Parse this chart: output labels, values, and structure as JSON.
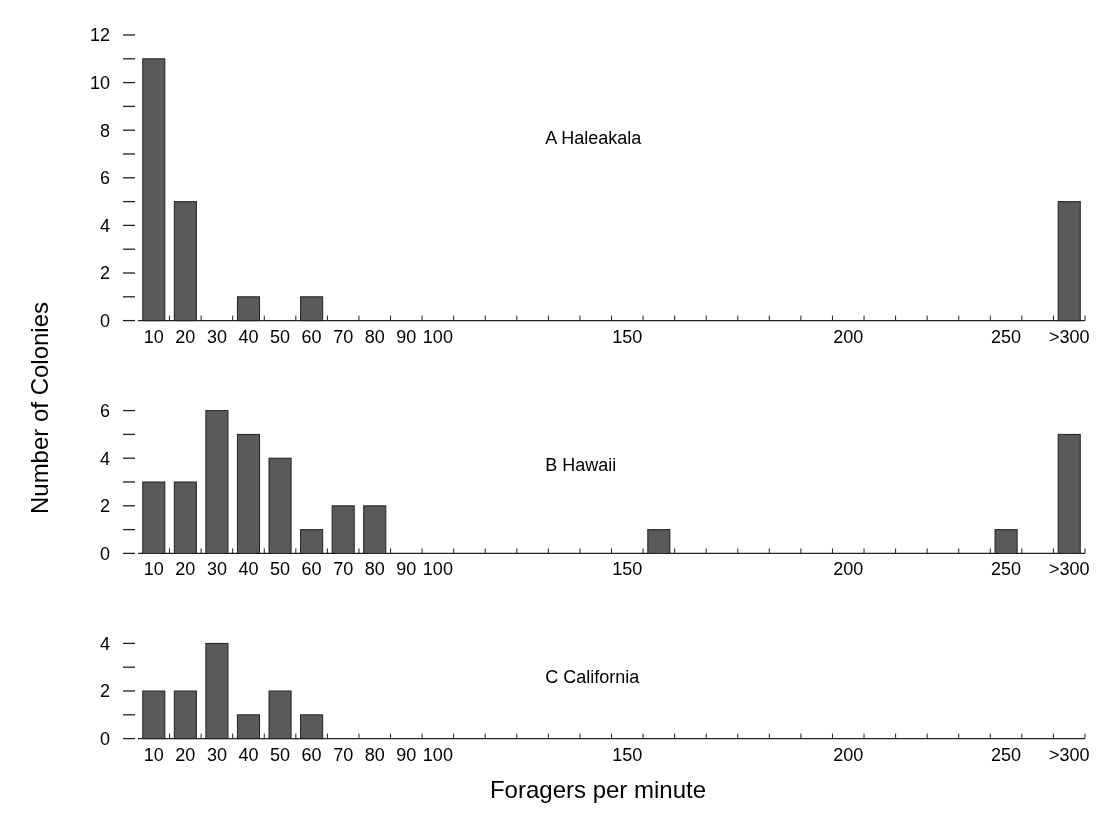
{
  "chart_data": [
    {
      "type": "bar",
      "title": "A  Haleakala",
      "categories": [
        "10",
        "20",
        "30",
        "40",
        "50",
        "60",
        "70",
        "80",
        "90",
        "100",
        null,
        null,
        null,
        null,
        null,
        "150",
        null,
        null,
        null,
        null,
        null,
        null,
        "200",
        null,
        null,
        null,
        null,
        "250",
        null,
        ">300"
      ],
      "values": [
        11,
        5,
        0,
        1,
        0,
        1,
        0,
        0,
        0,
        0,
        0,
        0,
        0,
        0,
        0,
        0,
        0,
        0,
        0,
        0,
        0,
        0,
        0,
        0,
        0,
        0,
        0,
        0,
        0,
        5
      ],
      "color": "#5a5a5a",
      "ylim": [
        0,
        12
      ],
      "yticks": [
        0,
        {
          "value": 1,
          "label": null
        },
        2,
        {
          "value": 3,
          "label": null
        },
        4,
        {
          "value": 5,
          "label": null
        },
        6,
        {
          "value": 7,
          "label": null
        },
        8,
        {
          "value": 9,
          "label": null
        },
        10,
        {
          "value": 11,
          "label": null
        },
        12
      ]
    },
    {
      "type": "bar",
      "title": "B  Hawaii",
      "ylabel": "Number of Colonies",
      "categories": [
        "10",
        "20",
        "30",
        "40",
        "50",
        "60",
        "70",
        "80",
        "90",
        "100",
        null,
        null,
        null,
        null,
        null,
        "150",
        null,
        null,
        null,
        null,
        null,
        null,
        "200",
        null,
        null,
        null,
        null,
        "250",
        null,
        ">300"
      ],
      "values": [
        3,
        3,
        6,
        5,
        4,
        1,
        2,
        2,
        0,
        0,
        0,
        0,
        0,
        0,
        0,
        0,
        1,
        0,
        0,
        0,
        0,
        0,
        0,
        0,
        0,
        0,
        0,
        1,
        0,
        5
      ],
      "color": "#5a5a5a",
      "ylim": [
        0,
        6
      ],
      "yticks": [
        0,
        {
          "value": 1,
          "label": null
        },
        2,
        {
          "value": 3,
          "label": null
        },
        4,
        {
          "value": 5,
          "label": null
        },
        6
      ]
    },
    {
      "type": "bar",
      "title": "C  California",
      "xlabel": "Foragers per minute",
      "categories": [
        "10",
        "20",
        "30",
        "40",
        "50",
        "60",
        "70",
        "80",
        "90",
        "100",
        null,
        null,
        null,
        null,
        null,
        "150",
        null,
        null,
        null,
        null,
        null,
        null,
        "200",
        null,
        null,
        null,
        null,
        "250",
        null,
        ">300"
      ],
      "values": [
        2,
        2,
        4,
        1,
        2,
        1,
        0,
        0,
        0,
        0,
        0,
        0,
        0,
        0,
        0,
        0,
        0,
        0,
        0,
        0,
        0,
        0,
        0,
        0,
        0,
        0,
        0,
        0,
        0,
        0
      ],
      "color": "#5a5a5a",
      "ylim": [
        0,
        4
      ],
      "yticks": [
        0,
        {
          "value": 1,
          "label": null
        },
        2,
        {
          "value": 3,
          "label": null
        },
        4
      ]
    }
  ]
}
